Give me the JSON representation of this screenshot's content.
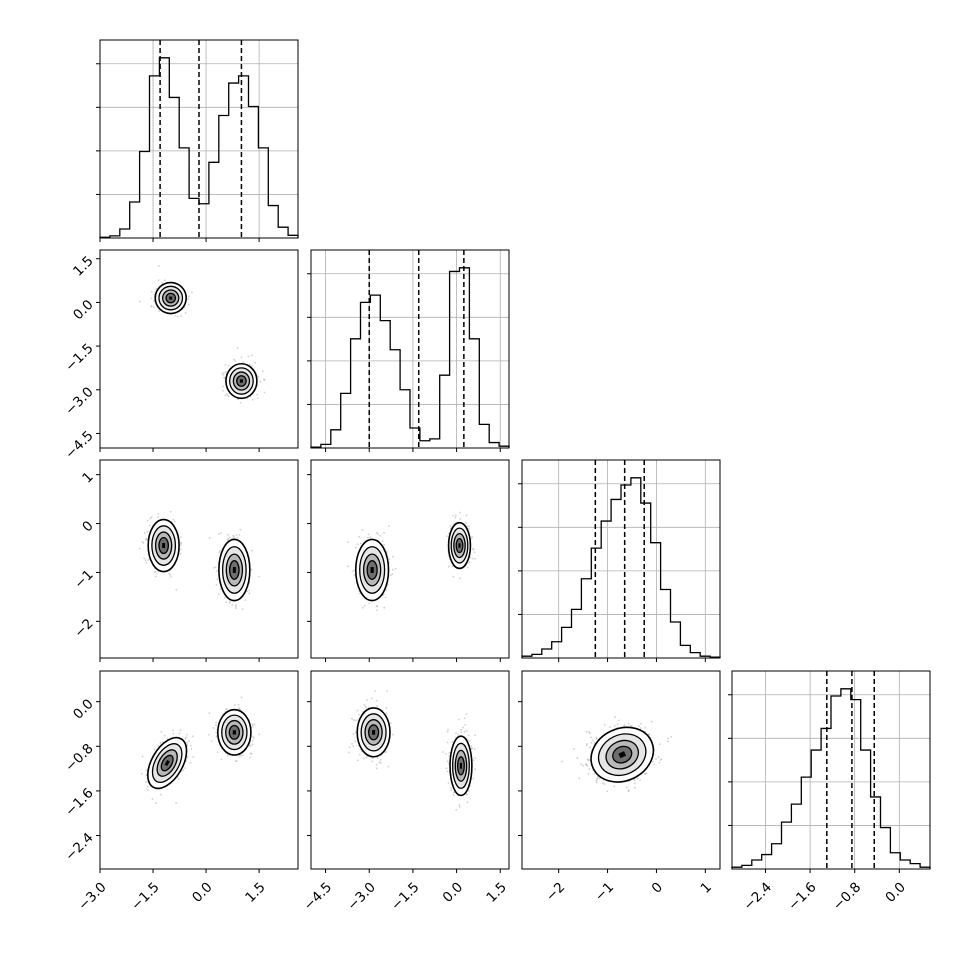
{
  "chart_data": {
    "type": "corner",
    "grid": true,
    "parameters": [
      {
        "range": [
          -3.0,
          2.6
        ],
        "ticks": [
          -3.0,
          -1.5,
          0.0,
          1.5
        ],
        "tick_labels": [
          "−3.0",
          "−1.5",
          "0.0",
          "1.5"
        ]
      },
      {
        "range": [
          -5.0,
          1.8
        ],
        "ticks": [
          -4.5,
          -3.0,
          -1.5,
          0.0,
          1.5
        ],
        "tick_labels": [
          "−4.5",
          "−3.0",
          "−1.5",
          "0.0",
          "1.5"
        ]
      },
      {
        "range": [
          -2.75,
          1.3
        ],
        "ticks": [
          -2,
          -1,
          0,
          1
        ],
        "tick_labels": [
          "−2",
          "−1",
          "0",
          "1"
        ]
      },
      {
        "range": [
          -3.0,
          0.55
        ],
        "ticks": [
          -2.4,
          -1.6,
          -0.8,
          0.0
        ],
        "tick_labels": [
          "−2.4",
          "−1.6",
          "−0.8",
          "0.0"
        ]
      }
    ],
    "histograms": [
      {
        "bin_edges": [
          -3.0,
          2.6
        ],
        "counts": [
          0.004,
          0.012,
          0.05,
          0.2,
          0.48,
          0.9,
          1.0,
          0.78,
          0.5,
          0.22,
          0.19,
          0.42,
          0.68,
          0.86,
          0.9,
          0.73,
          0.5,
          0.18,
          0.06,
          0.015
        ],
        "quantiles": [
          -1.3,
          -0.2,
          1.0
        ]
      },
      {
        "bin_edges": [
          -5.0,
          1.8
        ],
        "counts": [
          0.005,
          0.02,
          0.1,
          0.3,
          0.6,
          0.8,
          0.84,
          0.7,
          0.54,
          0.32,
          0.11,
          0.04,
          0.05,
          0.4,
          0.97,
          0.99,
          0.6,
          0.13,
          0.03,
          0.01
        ],
        "quantiles": [
          -3.0,
          -1.3,
          0.25
        ]
      },
      {
        "bin_edges": [
          -2.75,
          1.3
        ],
        "counts": [
          0.01,
          0.02,
          0.05,
          0.09,
          0.17,
          0.27,
          0.44,
          0.61,
          0.76,
          0.88,
          0.96,
          1.0,
          0.86,
          0.64,
          0.38,
          0.2,
          0.07,
          0.03,
          0.01,
          0.005
        ],
        "quantiles": [
          -1.25,
          -0.65,
          -0.25
        ]
      },
      {
        "bin_edges": [
          -3.0,
          0.55
        ],
        "counts": [
          0.01,
          0.02,
          0.05,
          0.08,
          0.14,
          0.26,
          0.36,
          0.51,
          0.66,
          0.78,
          0.96,
          1.0,
          0.94,
          0.66,
          0.4,
          0.23,
          0.09,
          0.05,
          0.03,
          0.01
        ],
        "quantiles": [
          -1.3,
          -0.85,
          -0.45
        ]
      }
    ],
    "pairs": [
      {
        "row": 1,
        "col": 0,
        "clusters": [
          {
            "center": [
              -1.0,
              0.15
            ],
            "axes": [
              0.7,
              0.85
            ],
            "angle": 0,
            "weight": 0.5
          },
          {
            "center": [
              1.0,
              -2.7
            ],
            "axes": [
              0.7,
              0.95
            ],
            "angle": 0,
            "weight": 0.5
          }
        ]
      },
      {
        "row": 2,
        "col": 0,
        "clusters": [
          {
            "center": [
              -1.2,
              -0.45
            ],
            "axes": [
              0.7,
              0.85
            ],
            "angle": 0,
            "weight": 0.5
          },
          {
            "center": [
              0.8,
              -0.95
            ],
            "axes": [
              0.7,
              1.0
            ],
            "angle": 0,
            "weight": 0.5
          }
        ]
      },
      {
        "row": 2,
        "col": 1,
        "clusters": [
          {
            "center": [
              -2.9,
              -0.95
            ],
            "axes": [
              0.9,
              1.0
            ],
            "angle": 0,
            "weight": 0.5
          },
          {
            "center": [
              0.1,
              -0.45
            ],
            "axes": [
              0.6,
              0.75
            ],
            "angle": 0,
            "weight": 0.5
          }
        ]
      },
      {
        "row": 3,
        "col": 0,
        "clusters": [
          {
            "center": [
              -1.1,
              -1.1
            ],
            "axes": [
              0.7,
              0.8
            ],
            "angle": 30,
            "weight": 0.5
          },
          {
            "center": [
              0.8,
              -0.55
            ],
            "axes": [
              0.75,
              0.65
            ],
            "angle": 0,
            "weight": 0.5
          }
        ]
      },
      {
        "row": 3,
        "col": 1,
        "clusters": [
          {
            "center": [
              -2.85,
              -0.55
            ],
            "axes": [
              0.9,
              0.7
            ],
            "angle": 0,
            "weight": 0.5
          },
          {
            "center": [
              0.15,
              -1.15
            ],
            "axes": [
              0.6,
              0.85
            ],
            "angle": 0,
            "weight": 0.5
          }
        ]
      },
      {
        "row": 3,
        "col": 2,
        "clusters": [
          {
            "center": [
              -0.7,
              -0.95
            ],
            "axes": [
              1.05,
              0.75
            ],
            "angle": -25,
            "weight": 1.0
          }
        ]
      }
    ]
  }
}
